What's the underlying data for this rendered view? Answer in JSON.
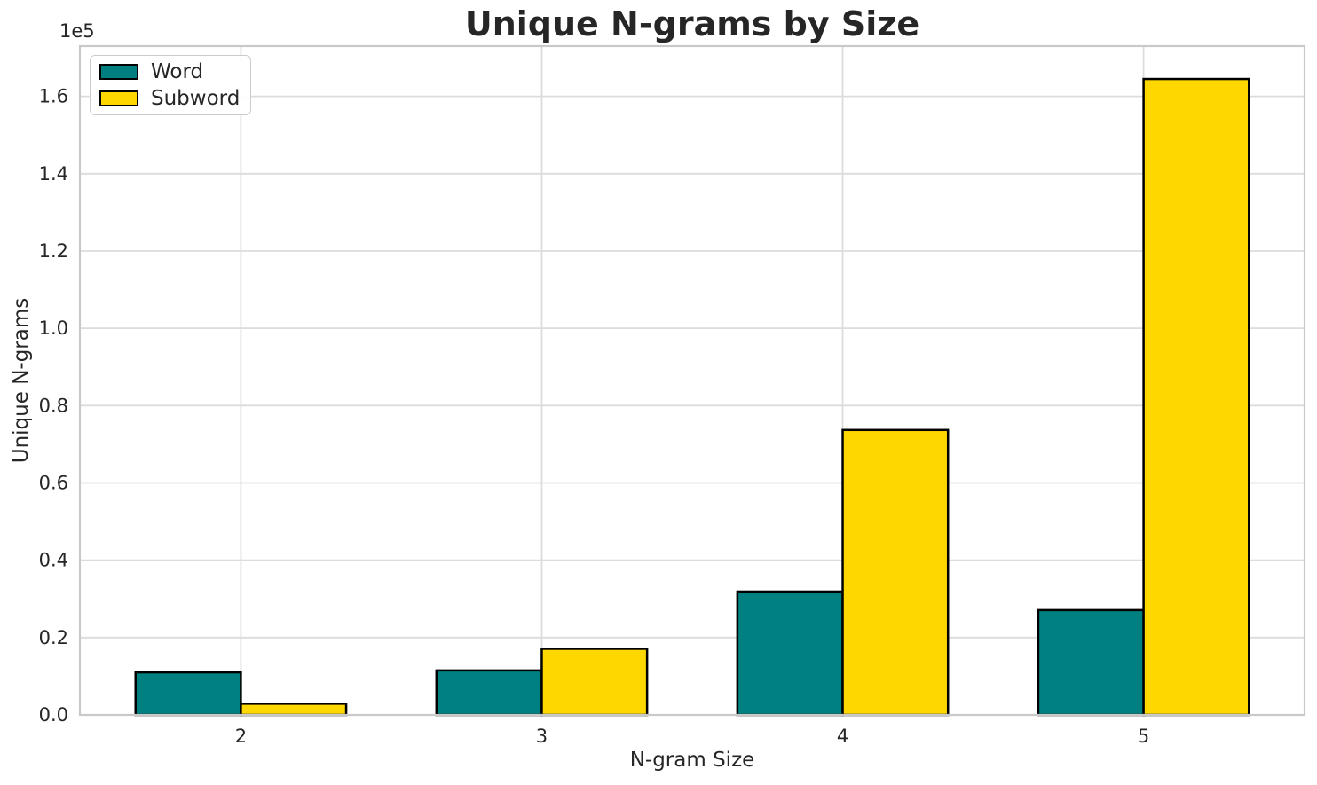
{
  "chart_data": {
    "type": "bar",
    "title": "Unique N-grams by Size",
    "xlabel": "N-gram Size",
    "ylabel": "Unique N-grams",
    "y_offset_text": "1e5",
    "categories": [
      "2",
      "3",
      "4",
      "5"
    ],
    "series": [
      {
        "name": "Word",
        "color": "#008080",
        "values": [
          11000,
          11500,
          31900,
          27100
        ]
      },
      {
        "name": "Subword",
        "color": "#FFD700",
        "values": [
          2900,
          17100,
          73700,
          164500
        ]
      }
    ],
    "bar_width": 0.35,
    "bar_edge_color": "#000000",
    "xlim": [
      -0.535,
      3.535
    ],
    "ylim": [
      0,
      173000
    ],
    "y_ticks": [
      0,
      20000,
      40000,
      60000,
      80000,
      100000,
      120000,
      140000,
      160000
    ],
    "y_tick_labels": [
      "0.0",
      "0.2",
      "0.4",
      "0.6",
      "0.8",
      "1.0",
      "1.2",
      "1.4",
      "1.6"
    ],
    "grid": true,
    "legend": {
      "position": "upper left",
      "entries": [
        "Word",
        "Subword"
      ]
    },
    "colors": {
      "background": "#FFFFFF",
      "grid": "#DCDCDC",
      "spine": "#C9C9C9",
      "text": "#262626"
    }
  }
}
